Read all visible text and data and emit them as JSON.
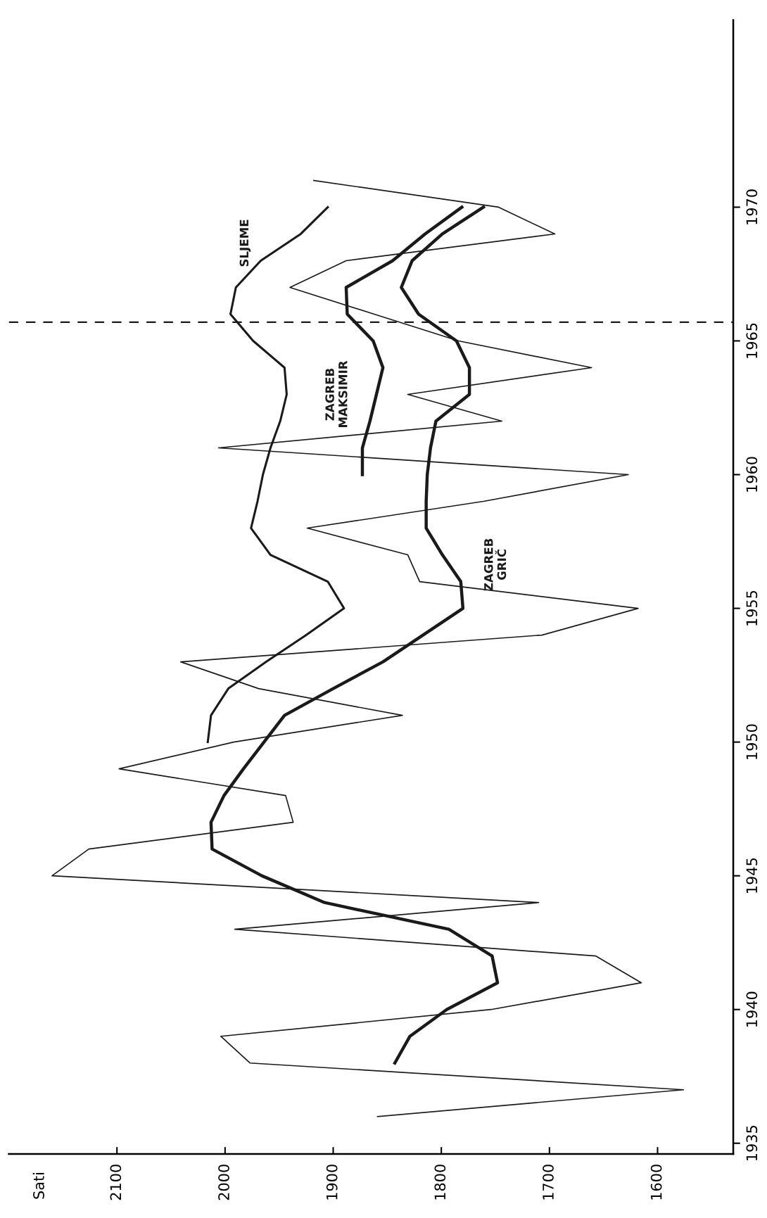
{
  "chart_data": {
    "type": "line",
    "orientation": "horizontal",
    "annotations": [
      "Sati"
    ],
    "xlim": [
      2200,
      1530
    ],
    "ylim": [
      1934.6,
      1977
    ],
    "xticks": [
      2100,
      2000,
      1900,
      1800,
      1700,
      1600
    ],
    "yticks": [
      1935,
      1940,
      1945,
      1950,
      1955,
      1960,
      1965,
      1970
    ],
    "grid": false,
    "line_style": "solid",
    "series": [
      {
        "color": "#1a1a1a",
        "x": [
          1936,
          1937,
          1938,
          1939,
          1940,
          1941,
          1942,
          1943,
          1944,
          1945,
          1946,
          1947,
          1948,
          1949,
          1950,
          1951,
          1952,
          1953,
          1954,
          1955,
          1956,
          1957,
          1958,
          1959,
          1960,
          1961,
          1962,
          1963,
          1964,
          1965,
          1966,
          1967,
          1968,
          1969,
          1970,
          1971
        ],
        "values": [
          1859,
          1576,
          1977,
          2004,
          1754,
          1615,
          1657,
          1991,
          1710,
          2160,
          2126,
          1937,
          1944,
          2098,
          1992,
          1836,
          1969,
          2041,
          1707,
          1618,
          1820,
          1831,
          1924,
          1761,
          1627,
          2006,
          1744,
          1831,
          1661,
          1784,
          1862,
          1940,
          1888,
          1695,
          1747,
          1918
        ]
      },
      {
        "name": "ZAGREB\nGRIČ",
        "color": "#1a1a1a",
        "x": [
          1938,
          1939,
          1940,
          1941,
          1942,
          1943,
          1944,
          1945,
          1946,
          1947,
          1948,
          1949,
          1950,
          1951,
          1952,
          1953,
          1954,
          1955,
          1956,
          1957,
          1958,
          1959,
          1960,
          1961,
          1962,
          1963,
          1964,
          1965,
          1966,
          1967,
          1968,
          1969,
          1970
        ],
        "values": [
          1843,
          1829,
          1795,
          1748,
          1753,
          1793,
          1908,
          1966,
          2012,
          2013,
          2001,
          1983,
          1964,
          1945,
          1900,
          1854,
          1817,
          1780,
          1782,
          1799,
          1814,
          1814,
          1813,
          1810,
          1805,
          1774,
          1774,
          1786,
          1821,
          1837,
          1827,
          1799,
          1761
        ]
      },
      {
        "name": "ZAGREB\nMAKSIMIR",
        "color": "#1a1a1a",
        "x": [
          1960,
          1961,
          1962,
          1963,
          1964,
          1965,
          1966,
          1967,
          1968,
          1969,
          1970
        ],
        "values": [
          1873,
          1873,
          1866,
          1860,
          1854,
          1863,
          1887,
          1888,
          1845,
          1815,
          1781
        ]
      },
      {
        "name": "SLJEME",
        "color": "#1a1a1a",
        "x": [
          1950,
          1951,
          1952,
          1953,
          1954,
          1955,
          1956,
          1957,
          1958,
          1959,
          1960,
          1961,
          1962,
          1963,
          1964,
          1965,
          1966,
          1967,
          1968,
          1969,
          1970
        ],
        "values": [
          2016,
          2013,
          1997,
          1962,
          1925,
          1890,
          1905,
          1958,
          1976,
          1970,
          1965,
          1958,
          1949,
          1943,
          1945,
          1974,
          1995,
          1990,
          1967,
          1930,
          1905
        ]
      }
    ],
    "ref_lines": [
      {
        "axis": "y",
        "value": 1965.7,
        "color": "#1a1a1a",
        "line_style": "dashed"
      }
    ]
  }
}
